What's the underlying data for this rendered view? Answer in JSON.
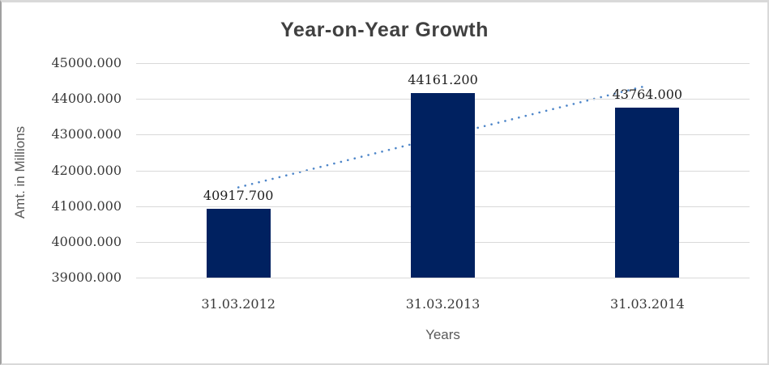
{
  "chart_data": {
    "type": "bar",
    "title": "Year-on-Year Growth",
    "xlabel": "Years",
    "ylabel": "Amt. in Millions",
    "categories": [
      "31.03.2012",
      "31.03.2013",
      "31.03.2014"
    ],
    "values": [
      40917.7,
      44161.2,
      43764.0
    ],
    "data_labels": [
      "40917.700",
      "44161.200",
      "43764.000"
    ],
    "ylim": [
      39000,
      45000
    ],
    "ytick_values": [
      45000,
      44000,
      43000,
      42000,
      41000,
      40000,
      39000
    ],
    "ytick_labels": [
      "45000.000",
      "44000.000",
      "43000.000",
      "42000.000",
      "41000.000",
      "40000.000",
      "39000.000"
    ],
    "grid": "horizontal",
    "legend": "none",
    "bar_color": "#002160",
    "trendline": {
      "type": "linear",
      "style": "dotted",
      "color": "#4e86c9"
    },
    "gridline_color": "#d9d9d9",
    "title_color": "#404040",
    "tick_color": "#3a3a3a",
    "axis_title_color": "#595959"
  }
}
